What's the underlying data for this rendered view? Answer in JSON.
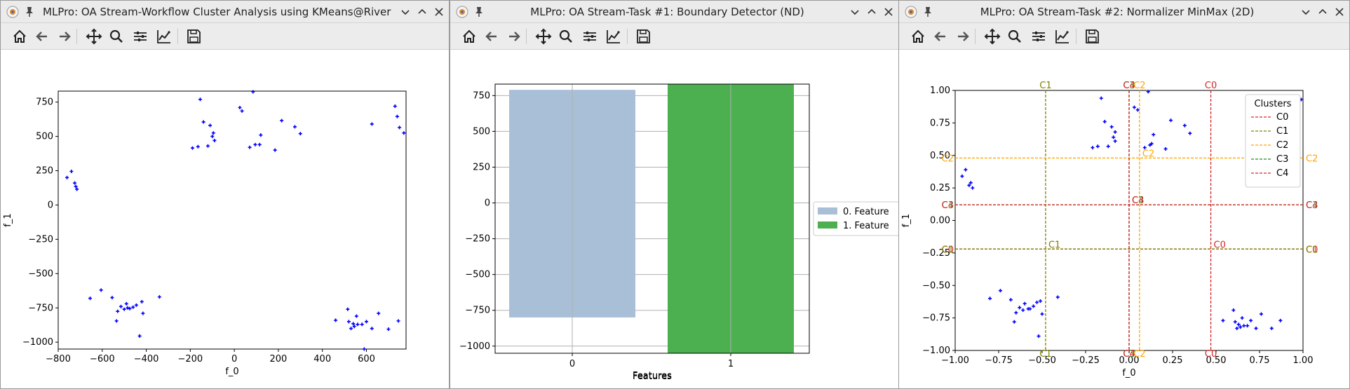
{
  "desktop": {
    "background": "#24302c"
  },
  "windows": [
    {
      "title": "MLPro: OA Stream-Workflow Cluster Analysis using KMeans@River (2D)",
      "toolbar": [
        "home-icon",
        "back-icon",
        "forward-icon",
        "pan-icon",
        "zoom-icon",
        "subplots-icon",
        "axes-edit-icon",
        "save-icon"
      ]
    },
    {
      "title": "MLPro: OA Stream-Task #1: Boundary Detector (ND)",
      "toolbar": [
        "home-icon",
        "back-icon",
        "forward-icon",
        "pan-icon",
        "zoom-icon",
        "subplots-icon",
        "axes-edit-icon",
        "save-icon"
      ]
    },
    {
      "title": "MLPro: OA Stream-Task #2: Normalizer MinMax (2D)",
      "toolbar": [
        "home-icon",
        "back-icon",
        "forward-icon",
        "pan-icon",
        "zoom-icon",
        "subplots-icon",
        "axes-edit-icon",
        "save-icon"
      ]
    }
  ],
  "chart_data": [
    {
      "type": "scatter",
      "xlabel": "f_0",
      "ylabel": "f_1",
      "xlim": [
        -800,
        780
      ],
      "ylim": [
        -1050,
        830
      ],
      "xticks": [
        "−800",
        "−600",
        "−400",
        "−200",
        "0",
        "200",
        "400",
        "600"
      ],
      "xtick_values": [
        -800,
        -600,
        -400,
        -200,
        0,
        200,
        400,
        600
      ],
      "yticks": [
        "−1000",
        "−750",
        "−500",
        "−250",
        "0",
        "250",
        "500",
        "750"
      ],
      "ytick_values": [
        -1000,
        -750,
        -500,
        -250,
        0,
        250,
        500,
        750
      ],
      "point_color": "#0000ff",
      "points": [
        [
          -760,
          200
        ],
        [
          -740,
          245
        ],
        [
          -725,
          160
        ],
        [
          -720,
          135
        ],
        [
          -715,
          115
        ],
        [
          -655,
          -680
        ],
        [
          -605,
          -620
        ],
        [
          -555,
          -675
        ],
        [
          -535,
          -845
        ],
        [
          -530,
          -775
        ],
        [
          -515,
          -740
        ],
        [
          -500,
          -760
        ],
        [
          -490,
          -720
        ],
        [
          -485,
          -750
        ],
        [
          -475,
          -755
        ],
        [
          -460,
          -745
        ],
        [
          -445,
          -730
        ],
        [
          -430,
          -955
        ],
        [
          -420,
          -705
        ],
        [
          -415,
          -790
        ],
        [
          -340,
          -670
        ],
        [
          -190,
          415
        ],
        [
          -165,
          425
        ],
        [
          -155,
          770
        ],
        [
          -140,
          605
        ],
        [
          -120,
          430
        ],
        [
          -110,
          580
        ],
        [
          -100,
          500
        ],
        [
          -95,
          525
        ],
        [
          -90,
          470
        ],
        [
          25,
          710
        ],
        [
          35,
          685
        ],
        [
          70,
          420
        ],
        [
          85,
          825
        ],
        [
          95,
          440
        ],
        [
          115,
          440
        ],
        [
          120,
          510
        ],
        [
          185,
          400
        ],
        [
          215,
          615
        ],
        [
          275,
          570
        ],
        [
          300,
          520
        ],
        [
          460,
          -840
        ],
        [
          515,
          -760
        ],
        [
          520,
          -850
        ],
        [
          530,
          -900
        ],
        [
          540,
          -865
        ],
        [
          545,
          -885
        ],
        [
          555,
          -810
        ],
        [
          560,
          -870
        ],
        [
          580,
          -870
        ],
        [
          590,
          -1050
        ],
        [
          600,
          -850
        ],
        [
          625,
          -900
        ],
        [
          655,
          -790
        ],
        [
          700,
          -905
        ],
        [
          745,
          -845
        ],
        [
          625,
          590
        ],
        [
          730,
          720
        ],
        [
          740,
          645
        ],
        [
          750,
          565
        ],
        [
          770,
          525
        ],
        [
          790,
          770
        ]
      ]
    },
    {
      "type": "bar",
      "xlabel": "Features",
      "ylabel": "",
      "categories": [
        "0",
        "1"
      ],
      "ylim": [
        -1050,
        830
      ],
      "yticks": [
        "−1000",
        "−750",
        "−500",
        "−250",
        "0",
        "250",
        "500",
        "750"
      ],
      "ytick_values": [
        -1000,
        -750,
        -500,
        -250,
        0,
        250,
        500,
        750
      ],
      "series": [
        {
          "name": "0. Feature",
          "color": "#a9bfd8",
          "range": [
            -800,
            790
          ]
        },
        {
          "name": "1. Feature",
          "color": "#4caf50",
          "range": [
            -1050,
            830
          ]
        }
      ],
      "grid": true,
      "legend": "right"
    },
    {
      "type": "scatter",
      "xlabel": "f_0",
      "ylabel": "f_1",
      "xlim": [
        -1.0,
        1.0
      ],
      "ylim": [
        -1.0,
        1.0
      ],
      "xticks": [
        "−1.00",
        "−0.75",
        "−0.50",
        "−0.25",
        "0.00",
        "0.25",
        "0.50",
        "0.75",
        "1.00"
      ],
      "xtick_values": [
        -1.0,
        -0.75,
        -0.5,
        -0.25,
        0,
        0.25,
        0.5,
        0.75,
        1.0
      ],
      "yticks": [
        "−1.00",
        "−0.75",
        "−0.50",
        "−0.25",
        "0.00",
        "0.25",
        "0.50",
        "0.75",
        "1.00"
      ],
      "ytick_values": [
        -1.0,
        -0.75,
        -0.5,
        -0.25,
        0,
        0.25,
        0.5,
        0.75,
        1.0
      ],
      "point_color": "#0000ff",
      "points": [
        [
          -0.96,
          0.34
        ],
        [
          -0.94,
          0.39
        ],
        [
          -0.92,
          0.27
        ],
        [
          -0.91,
          0.29
        ],
        [
          -0.9,
          0.25
        ],
        [
          -0.8,
          -0.6
        ],
        [
          -0.74,
          -0.54
        ],
        [
          -0.68,
          -0.61
        ],
        [
          -0.66,
          -0.78
        ],
        [
          -0.65,
          -0.71
        ],
        [
          -0.63,
          -0.67
        ],
        [
          -0.61,
          -0.69
        ],
        [
          -0.6,
          -0.64
        ],
        [
          -0.58,
          -0.68
        ],
        [
          -0.57,
          -0.68
        ],
        [
          -0.55,
          -0.66
        ],
        [
          -0.53,
          -0.63
        ],
        [
          -0.52,
          -0.89
        ],
        [
          -0.51,
          -0.62
        ],
        [
          -0.5,
          -0.72
        ],
        [
          -0.41,
          -0.59
        ],
        [
          -0.21,
          0.56
        ],
        [
          -0.18,
          0.57
        ],
        [
          -0.16,
          0.94
        ],
        [
          -0.14,
          0.76
        ],
        [
          -0.12,
          0.57
        ],
        [
          -0.1,
          0.72
        ],
        [
          -0.09,
          0.64
        ],
        [
          -0.08,
          0.68
        ],
        [
          -0.08,
          0.61
        ],
        [
          0.03,
          0.87
        ],
        [
          0.05,
          0.85
        ],
        [
          0.09,
          0.56
        ],
        [
          0.11,
          0.99
        ],
        [
          0.12,
          0.58
        ],
        [
          0.13,
          0.59
        ],
        [
          0.14,
          0.66
        ],
        [
          0.21,
          0.55
        ],
        [
          0.24,
          0.77
        ],
        [
          0.32,
          0.73
        ],
        [
          0.35,
          0.67
        ],
        [
          0.54,
          -0.77
        ],
        [
          0.6,
          -0.69
        ],
        [
          0.61,
          -0.78
        ],
        [
          0.62,
          -0.83
        ],
        [
          0.63,
          -0.8
        ],
        [
          0.64,
          -0.82
        ],
        [
          0.65,
          -0.75
        ],
        [
          0.66,
          -0.81
        ],
        [
          0.68,
          -0.81
        ],
        [
          0.7,
          -0.77
        ],
        [
          0.73,
          -0.83
        ],
        [
          0.76,
          -0.72
        ],
        [
          0.82,
          -0.83
        ],
        [
          0.87,
          -0.77
        ],
        [
          0.99,
          0.93
        ]
      ],
      "clusters": [
        {
          "name": "C0",
          "color": "#d62728",
          "x": 0.47,
          "y": -0.22
        },
        {
          "name": "C1",
          "color": "#808000",
          "x": -0.48,
          "y": -0.22
        },
        {
          "name": "C2",
          "color": "#ffa500",
          "x": 0.06,
          "y": 0.48
        },
        {
          "name": "C3",
          "color": "#228b22",
          "x": 0.0,
          "y": 0.12
        },
        {
          "name": "C4",
          "color": "#d62728",
          "x": 0.0,
          "y": 0.12
        }
      ],
      "legend_title": "Clusters",
      "legend": "top-right"
    }
  ]
}
